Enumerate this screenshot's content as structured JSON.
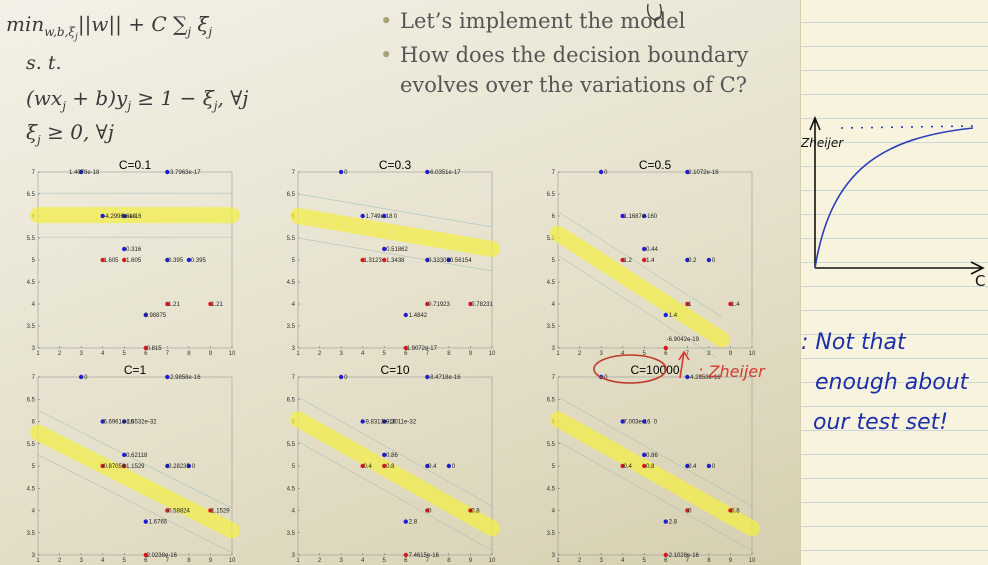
{
  "formula": {
    "objective": "min",
    "objective_sub": "w,b,ξ",
    "objective_sub2": "j",
    "objective_rest": "||w|| + C ∑",
    "objective_sum_sub": "j",
    "objective_xi": "ξ",
    "objective_xi_sub": "j",
    "st": "s. t.",
    "constraint1": "(wx",
    "constraint1_b": "j",
    "constraint1_c": " + b)y",
    "constraint1_d": "j",
    "constraint1_e": " ≥ 1 − ξ",
    "constraint1_f": "j",
    "constraint1_g": ", ∀j",
    "constraint2": "ξ",
    "constraint2_b": "j",
    "constraint2_c": " ≥ 0, ∀j"
  },
  "bullets": [
    "Let’s implement the model",
    "How does the decision boundary evolves over the variations of C?"
  ],
  "plots": [
    {
      "title": "C=0.1",
      "labels": [
        {
          "x": 2.3,
          "y": 7.0,
          "t": "1.4078e-18"
        },
        {
          "x": 6.9,
          "y": 7.0,
          "t": "-3.7963e-17"
        },
        {
          "x": 3.9,
          "y": 6.0,
          "t": "-4.2996e-18"
        },
        {
          "x": 4.95,
          "y": 6.0,
          "t": "6e-16"
        },
        {
          "x": 4.95,
          "y": 5.25,
          "t": "0.316"
        },
        {
          "x": 3.9,
          "y": 5.0,
          "t": "1.605"
        },
        {
          "x": 4.95,
          "y": 5.0,
          "t": "1.605"
        },
        {
          "x": 6.9,
          "y": 5.0,
          "t": "0.395"
        },
        {
          "x": 7.95,
          "y": 5.0,
          "t": "0.395"
        },
        {
          "x": 6.9,
          "y": 4.0,
          "t": "1.21"
        },
        {
          "x": 8.9,
          "y": 4.0,
          "t": "1.21"
        },
        {
          "x": 5.8,
          "y": 3.75,
          "t": "0.98875"
        },
        {
          "x": 5.9,
          "y": 3.0,
          "t": "0.815"
        }
      ]
    },
    {
      "title": "C=0.3",
      "labels": [
        {
          "x": 3.0,
          "y": 7.0,
          "t": "0"
        },
        {
          "x": 6.9,
          "y": 7.0,
          "t": "-6.0351e-17"
        },
        {
          "x": 3.9,
          "y": 6.0,
          "t": "-1.749e-18"
        },
        {
          "x": 5.3,
          "y": 6.0,
          "t": "0"
        },
        {
          "x": 4.95,
          "y": 5.25,
          "t": "0.51862"
        },
        {
          "x": 3.9,
          "y": 5.0,
          "t": "1.3123"
        },
        {
          "x": 4.95,
          "y": 5.0,
          "t": "1.3438"
        },
        {
          "x": 6.9,
          "y": 5.0,
          "t": "0.333080.56154"
        },
        {
          "x": 6.9,
          "y": 4.0,
          "t": "0.71923"
        },
        {
          "x": 8.9,
          "y": 4.0,
          "t": "0.78231"
        },
        {
          "x": 6.0,
          "y": 3.75,
          "t": "1.4842"
        },
        {
          "x": 5.9,
          "y": 3.0,
          "t": "1.9072e-17"
        }
      ]
    },
    {
      "title": "C=0.5",
      "labels": [
        {
          "x": 3.0,
          "y": 7.0,
          "t": "0"
        },
        {
          "x": 6.9,
          "y": 7.0,
          "t": "2.1072e-16"
        },
        {
          "x": 3.9,
          "y": 6.0,
          "t": "1.1687e-16"
        },
        {
          "x": 5.3,
          "y": 6.0,
          "t": "0"
        },
        {
          "x": 4.95,
          "y": 5.25,
          "t": "0.44"
        },
        {
          "x": 3.9,
          "y": 5.0,
          "t": "1.2"
        },
        {
          "x": 4.95,
          "y": 5.0,
          "t": "1.4"
        },
        {
          "x": 6.9,
          "y": 5.0,
          "t": "0.2"
        },
        {
          "x": 8.0,
          "y": 5.0,
          "t": "0"
        },
        {
          "x": 6.9,
          "y": 4.0,
          "t": "1"
        },
        {
          "x": 8.9,
          "y": 4.0,
          "t": "1.4"
        },
        {
          "x": 6.0,
          "y": 3.75,
          "t": "1.4"
        },
        {
          "x": 5.9,
          "y": 3.2,
          "t": "-6.9042e-19"
        }
      ]
    },
    {
      "title": "C=1",
      "labels": [
        {
          "x": 3.0,
          "y": 7.0,
          "t": "0"
        },
        {
          "x": 6.9,
          "y": 7.0,
          "t": "-2.9858e-16"
        },
        {
          "x": 3.9,
          "y": 6.0,
          "t": "6.6961e-16"
        },
        {
          "x": 4.95,
          "y": 6.0,
          "t": "1.5532e-32"
        },
        {
          "x": 4.95,
          "y": 5.25,
          "t": "0.62118"
        },
        {
          "x": 3.9,
          "y": 5.0,
          "t": "0.87059"
        },
        {
          "x": 4.95,
          "y": 5.0,
          "t": "1.1529"
        },
        {
          "x": 6.9,
          "y": 5.0,
          "t": "0.28235"
        },
        {
          "x": 8.0,
          "y": 5.0,
          "t": "0"
        },
        {
          "x": 6.9,
          "y": 4.0,
          "t": "0.58824"
        },
        {
          "x": 8.9,
          "y": 4.0,
          "t": "1.1529"
        },
        {
          "x": 6.0,
          "y": 3.75,
          "t": "1.6765"
        },
        {
          "x": 5.9,
          "y": 3.0,
          "t": "2.0238e-16"
        }
      ]
    },
    {
      "title": "C=10",
      "labels": [
        {
          "x": 3.0,
          "y": 7.0,
          "t": "0"
        },
        {
          "x": 6.9,
          "y": 7.0,
          "t": "-8.4718e-16"
        },
        {
          "x": 3.9,
          "y": 6.0,
          "t": "-9.8313e-18"
        },
        {
          "x": 4.95,
          "y": 6.0,
          "t": "9.3011e-32"
        },
        {
          "x": 4.95,
          "y": 5.25,
          "t": "0.86"
        },
        {
          "x": 3.9,
          "y": 5.0,
          "t": "0.4"
        },
        {
          "x": 4.95,
          "y": 5.0,
          "t": "0.8"
        },
        {
          "x": 6.9,
          "y": 5.0,
          "t": "0.4"
        },
        {
          "x": 8.0,
          "y": 5.0,
          "t": "0"
        },
        {
          "x": 6.9,
          "y": 4.0,
          "t": "0"
        },
        {
          "x": 8.9,
          "y": 4.0,
          "t": "0.8"
        },
        {
          "x": 6.0,
          "y": 3.75,
          "t": "2.8"
        },
        {
          "x": 5.9,
          "y": 3.0,
          "t": "-7.4615e-16"
        }
      ]
    },
    {
      "title": "C=10000",
      "labels": [
        {
          "x": 3.0,
          "y": 7.0,
          "t": "0"
        },
        {
          "x": 6.9,
          "y": 7.0,
          "t": "-4.2859e-16"
        },
        {
          "x": 3.9,
          "y": 6.0,
          "t": "7.003e-16"
        },
        {
          "x": 5.3,
          "y": 6.0,
          "t": "0"
        },
        {
          "x": 4.95,
          "y": 5.25,
          "t": "0.86"
        },
        {
          "x": 3.9,
          "y": 5.0,
          "t": "0.4"
        },
        {
          "x": 4.95,
          "y": 5.0,
          "t": "0.8"
        },
        {
          "x": 6.9,
          "y": 5.0,
          "t": "0.4"
        },
        {
          "x": 8.0,
          "y": 5.0,
          "t": "0"
        },
        {
          "x": 6.9,
          "y": 4.0,
          "t": "0"
        },
        {
          "x": 8.9,
          "y": 4.0,
          "t": "0.8"
        },
        {
          "x": 6.0,
          "y": 3.75,
          "t": "2.8"
        },
        {
          "x": 5.9,
          "y": 3.0,
          "t": "-2.1028e-16"
        }
      ]
    }
  ],
  "points_blue": [
    [
      3,
      7
    ],
    [
      7,
      7
    ],
    [
      4,
      6
    ],
    [
      5,
      6
    ],
    [
      5,
      5.25
    ],
    [
      7,
      5
    ],
    [
      8,
      5
    ],
    [
      6,
      3.75
    ]
  ],
  "points_red": [
    [
      4,
      5
    ],
    [
      5,
      5
    ],
    [
      7,
      4
    ],
    [
      9,
      4
    ],
    [
      6,
      3
    ]
  ],
  "xticks": [
    "1",
    "2",
    "3",
    "4",
    "5",
    "6",
    "7",
    "8",
    "9",
    "10"
  ],
  "yticks": [
    "3",
    "3.5",
    "4",
    "4.5",
    "5",
    "5.5",
    "6",
    "6.5",
    "7"
  ],
  "annotations": {
    "ylabel_scribble": "Zheijer",
    "x_end": "C",
    "note_line1": ": Not that",
    "note_line2": "enough about",
    "note_line3": "our test set!",
    "circle_note": ": Zheijer"
  },
  "colors": {
    "blue": "#1f1fd0",
    "red": "#d11b1b",
    "highlight": "#f3ee4a",
    "ink": "#1c2fa8"
  }
}
